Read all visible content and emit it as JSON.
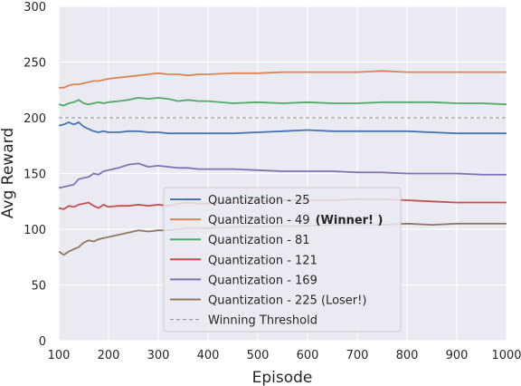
{
  "chart_data": {
    "type": "line",
    "title": "",
    "xlabel": "Episode",
    "ylabel": "Avg Reward",
    "xlim": [
      100,
      1000
    ],
    "ylim": [
      0,
      300
    ],
    "xticks": [
      100,
      200,
      300,
      400,
      500,
      600,
      700,
      800,
      900,
      1000
    ],
    "yticks": [
      0,
      50,
      100,
      150,
      200,
      250,
      300
    ],
    "grid": true,
    "legend_position": "lower-center",
    "background": "#eaeaf2",
    "threshold": {
      "name": "Winning Threshold",
      "value": 200,
      "color": "#a0a0a0"
    },
    "x": [
      100,
      110,
      120,
      130,
      140,
      150,
      160,
      170,
      180,
      190,
      200,
      220,
      240,
      260,
      280,
      300,
      320,
      340,
      360,
      380,
      400,
      450,
      500,
      550,
      600,
      650,
      700,
      750,
      800,
      850,
      900,
      950,
      1000
    ],
    "series": [
      {
        "name": "Quantization - 25",
        "color": "#4c72b0",
        "values": [
          193,
          194,
          196,
          194,
          196,
          192,
          190,
          188,
          187,
          188,
          187,
          187,
          188,
          188,
          187,
          187,
          186,
          186,
          186,
          186,
          186,
          186,
          187,
          188,
          189,
          188,
          188,
          188,
          188,
          187,
          186,
          186,
          186
        ]
      },
      {
        "name": "Quantization - 49",
        "name_suffix": "(Winner! )",
        "color": "#dd8452",
        "values": [
          227,
          227,
          229,
          230,
          230,
          231,
          232,
          233,
          233,
          234,
          235,
          236,
          237,
          238,
          239,
          240,
          239,
          239,
          238,
          239,
          239,
          240,
          240,
          241,
          241,
          241,
          241,
          242,
          241,
          241,
          241,
          241,
          241
        ]
      },
      {
        "name": "Quantization - 81",
        "color": "#55a868",
        "values": [
          212,
          211,
          213,
          214,
          216,
          213,
          212,
          213,
          214,
          213,
          214,
          215,
          216,
          218,
          217,
          218,
          217,
          215,
          216,
          215,
          215,
          213,
          214,
          213,
          214,
          213,
          213,
          214,
          214,
          214,
          213,
          213,
          212
        ]
      },
      {
        "name": "Quantization - 121",
        "color": "#c44e52",
        "values": [
          119,
          118,
          121,
          120,
          122,
          123,
          124,
          121,
          119,
          122,
          120,
          121,
          121,
          122,
          121,
          122,
          121,
          123,
          124,
          123,
          123,
          124,
          125,
          126,
          126,
          126,
          127,
          127,
          126,
          125,
          124,
          124,
          124
        ]
      },
      {
        "name": "Quantization - 169",
        "color": "#8172b3",
        "values": [
          137,
          138,
          139,
          140,
          145,
          146,
          147,
          150,
          149,
          152,
          153,
          155,
          158,
          159,
          156,
          157,
          156,
          155,
          155,
          154,
          154,
          154,
          153,
          152,
          152,
          152,
          151,
          151,
          150,
          150,
          150,
          149,
          149
        ]
      },
      {
        "name": "Quantization - 225 (Loser!)",
        "color": "#937860",
        "values": [
          80,
          77,
          80,
          82,
          84,
          88,
          90,
          89,
          91,
          92,
          93,
          95,
          97,
          99,
          98,
          99,
          99,
          100,
          101,
          101,
          101,
          102,
          102,
          103,
          103,
          104,
          104,
          104,
          105,
          104,
          105,
          105,
          105
        ]
      }
    ]
  }
}
